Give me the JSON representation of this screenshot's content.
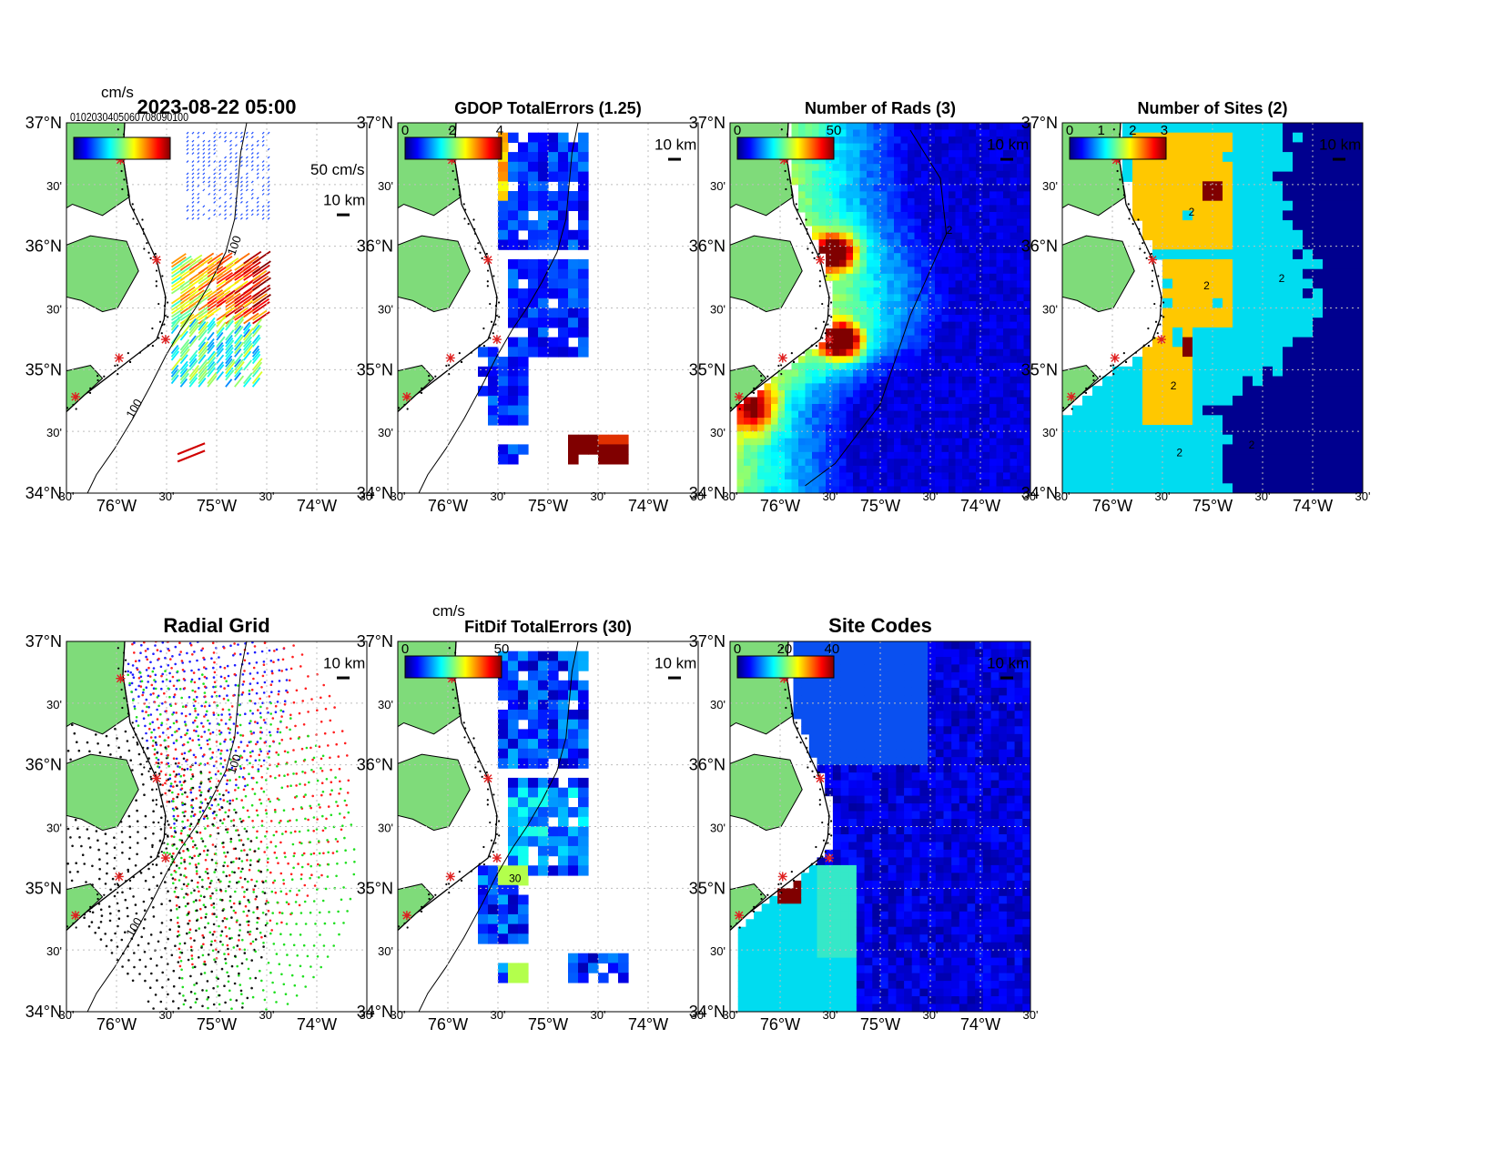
{
  "figure": {
    "timestamp": "2023-08-22 05:00",
    "vector_scale_label": "50 cm/s",
    "scale_bar_label": "10 km"
  },
  "axes": {
    "lat_ticks": [
      "37°N",
      "30'",
      "36°N",
      "30'",
      "35°N",
      "30'",
      "34°N"
    ],
    "lon_ticks": [
      "30'",
      "76°W",
      "30'",
      "75°W",
      "30'",
      "74°W",
      "30'"
    ],
    "lat_range": [
      34,
      37
    ],
    "lon_range": [
      -76.5,
      -73.5
    ]
  },
  "colors": {
    "land": "#7fdb7a",
    "site_marker": "#e02020",
    "max_red": "#800000",
    "ocean_dark": "#00008f"
  },
  "panels": [
    {
      "id": "total-vectors",
      "title": "",
      "colorbar_label": "cm/s",
      "colorbar_ticks": [],
      "overlap_text": "0102030405060708090100"
    },
    {
      "id": "gdop-total-errors",
      "title": "GDOP TotalErrors (1.25)",
      "colorbar_label": "",
      "colorbar_ticks": [
        "0",
        "2",
        "4"
      ]
    },
    {
      "id": "number-of-rads",
      "title": "Number of Rads (3)",
      "colorbar_label": "",
      "colorbar_ticks": [
        "0",
        "50"
      ]
    },
    {
      "id": "number-of-sites",
      "title": "Number of Sites (2)",
      "colorbar_label": "",
      "colorbar_ticks": [
        "0",
        "1",
        "2",
        "3"
      ]
    },
    {
      "id": "radial-grid",
      "title": "Radial Grid",
      "colorbar_label": "",
      "colorbar_ticks": []
    },
    {
      "id": "fitdif-total-errors",
      "title": "FitDif TotalErrors (30)",
      "colorbar_label": "cm/s",
      "colorbar_ticks": [
        "0",
        "50"
      ]
    },
    {
      "id": "site-codes",
      "title": "Site Codes",
      "colorbar_label": "",
      "colorbar_ticks": [
        "0",
        "20",
        "40"
      ]
    }
  ],
  "contour_labels": {
    "depth": "100",
    "sites_contour": "2",
    "fitdif_contour": "30"
  },
  "radial_site_colors": [
    "#1f1fff",
    "#ff1f1f",
    "#1fdf1f",
    "#111111"
  ]
}
